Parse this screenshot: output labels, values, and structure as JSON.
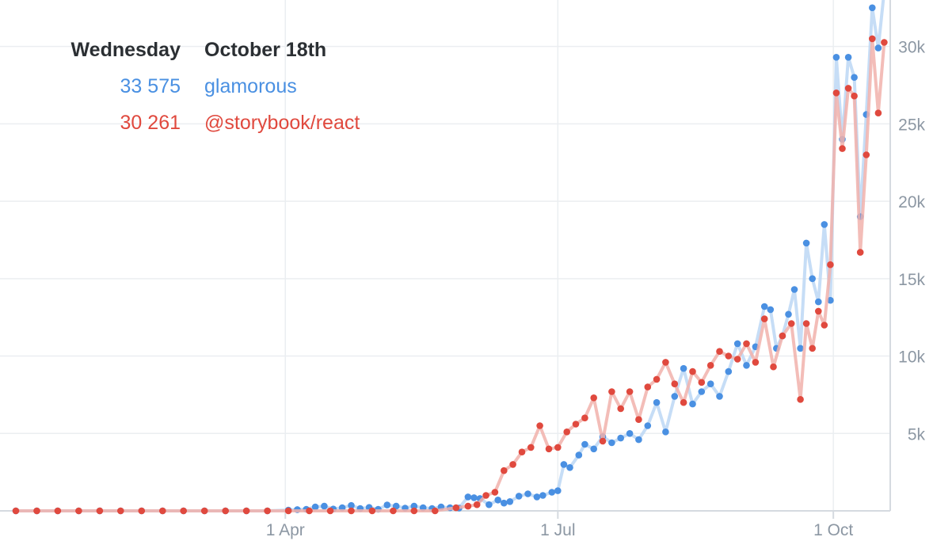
{
  "tooltip": {
    "day": "Wednesday",
    "date": "October 18th",
    "entries": [
      {
        "value": "33 575",
        "label": "glamorous",
        "color": "#4a90e2"
      },
      {
        "value": "30 261",
        "label": "@storybook/react",
        "color": "#e0493e"
      }
    ]
  },
  "chart_data": {
    "type": "line",
    "x_ticks": [
      {
        "label": "1 Apr",
        "date": "2017-04-01"
      },
      {
        "label": "1 Jul",
        "date": "2017-07-01"
      },
      {
        "label": "1 Oct",
        "date": "2017-10-01"
      }
    ],
    "y_ticks": [
      {
        "label": "5k",
        "value": 5000
      },
      {
        "label": "10k",
        "value": 10000
      },
      {
        "label": "15k",
        "value": 15000
      },
      {
        "label": "20k",
        "value": 20000
      },
      {
        "label": "25k",
        "value": 25000
      },
      {
        "label": "30k",
        "value": 30000
      }
    ],
    "xlim": [
      "2017-01-01",
      "2017-10-20"
    ],
    "ylim": [
      0,
      33000
    ],
    "grid": true,
    "series": [
      {
        "name": "glamorous",
        "color": "#4a90e2",
        "line_color": "#bcd7f4",
        "points": [
          [
            "2017-01-01",
            0
          ],
          [
            "2017-01-08",
            0
          ],
          [
            "2017-01-15",
            0
          ],
          [
            "2017-01-22",
            0
          ],
          [
            "2017-01-29",
            0
          ],
          [
            "2017-02-05",
            0
          ],
          [
            "2017-02-12",
            0
          ],
          [
            "2017-02-19",
            0
          ],
          [
            "2017-02-26",
            0
          ],
          [
            "2017-03-05",
            0
          ],
          [
            "2017-03-12",
            0
          ],
          [
            "2017-03-19",
            0
          ],
          [
            "2017-03-26",
            0
          ],
          [
            "2017-04-02",
            50
          ],
          [
            "2017-04-05",
            80
          ],
          [
            "2017-04-08",
            100
          ],
          [
            "2017-04-11",
            250
          ],
          [
            "2017-04-14",
            300
          ],
          [
            "2017-04-17",
            120
          ],
          [
            "2017-04-20",
            200
          ],
          [
            "2017-04-23",
            350
          ],
          [
            "2017-04-26",
            150
          ],
          [
            "2017-04-29",
            220
          ],
          [
            "2017-05-02",
            100
          ],
          [
            "2017-05-05",
            380
          ],
          [
            "2017-05-08",
            300
          ],
          [
            "2017-05-11",
            180
          ],
          [
            "2017-05-14",
            300
          ],
          [
            "2017-05-17",
            200
          ],
          [
            "2017-05-20",
            150
          ],
          [
            "2017-05-23",
            250
          ],
          [
            "2017-05-26",
            200
          ],
          [
            "2017-05-29",
            180
          ],
          [
            "2017-06-01",
            900
          ],
          [
            "2017-06-03",
            850
          ],
          [
            "2017-06-05",
            800
          ],
          [
            "2017-06-08",
            400
          ],
          [
            "2017-06-11",
            700
          ],
          [
            "2017-06-13",
            500
          ],
          [
            "2017-06-15",
            600
          ],
          [
            "2017-06-18",
            950
          ],
          [
            "2017-06-21",
            1100
          ],
          [
            "2017-06-24",
            900
          ],
          [
            "2017-06-26",
            1000
          ],
          [
            "2017-06-29",
            1200
          ],
          [
            "2017-07-01",
            1300
          ],
          [
            "2017-07-03",
            3000
          ],
          [
            "2017-07-05",
            2800
          ],
          [
            "2017-07-08",
            3600
          ],
          [
            "2017-07-10",
            4300
          ],
          [
            "2017-07-13",
            4000
          ],
          [
            "2017-07-16",
            4800
          ],
          [
            "2017-07-19",
            4400
          ],
          [
            "2017-07-22",
            4700
          ],
          [
            "2017-07-25",
            5000
          ],
          [
            "2017-07-28",
            4600
          ],
          [
            "2017-07-31",
            5500
          ],
          [
            "2017-08-03",
            7000
          ],
          [
            "2017-08-06",
            5100
          ],
          [
            "2017-08-09",
            7400
          ],
          [
            "2017-08-12",
            9200
          ],
          [
            "2017-08-15",
            6900
          ],
          [
            "2017-08-18",
            7700
          ],
          [
            "2017-08-21",
            8200
          ],
          [
            "2017-08-24",
            7400
          ],
          [
            "2017-08-27",
            9000
          ],
          [
            "2017-08-30",
            10800
          ],
          [
            "2017-09-02",
            9400
          ],
          [
            "2017-09-05",
            10600
          ],
          [
            "2017-09-08",
            13200
          ],
          [
            "2017-09-10",
            13000
          ],
          [
            "2017-09-12",
            10500
          ],
          [
            "2017-09-14",
            11300
          ],
          [
            "2017-09-16",
            12700
          ],
          [
            "2017-09-18",
            14300
          ],
          [
            "2017-09-20",
            10500
          ],
          [
            "2017-09-22",
            17300
          ],
          [
            "2017-09-24",
            15000
          ],
          [
            "2017-09-26",
            13500
          ],
          [
            "2017-09-28",
            18500
          ],
          [
            "2017-09-30",
            13600
          ],
          [
            "2017-10-02",
            29300
          ],
          [
            "2017-10-04",
            24000
          ],
          [
            "2017-10-06",
            29300
          ],
          [
            "2017-10-08",
            28000
          ],
          [
            "2017-10-10",
            19000
          ],
          [
            "2017-10-12",
            25600
          ],
          [
            "2017-10-14",
            32500
          ],
          [
            "2017-10-16",
            29900
          ],
          [
            "2017-10-18",
            33575
          ]
        ]
      },
      {
        "name": "@storybook/react",
        "color": "#e0493e",
        "line_color": "#f1b1ac",
        "points": [
          [
            "2017-01-01",
            0
          ],
          [
            "2017-01-08",
            0
          ],
          [
            "2017-01-15",
            0
          ],
          [
            "2017-01-22",
            0
          ],
          [
            "2017-01-29",
            0
          ],
          [
            "2017-02-05",
            0
          ],
          [
            "2017-02-12",
            0
          ],
          [
            "2017-02-19",
            0
          ],
          [
            "2017-02-26",
            0
          ],
          [
            "2017-03-05",
            0
          ],
          [
            "2017-03-12",
            0
          ],
          [
            "2017-03-19",
            0
          ],
          [
            "2017-03-26",
            0
          ],
          [
            "2017-04-02",
            0
          ],
          [
            "2017-04-09",
            0
          ],
          [
            "2017-04-16",
            0
          ],
          [
            "2017-04-23",
            0
          ],
          [
            "2017-04-30",
            0
          ],
          [
            "2017-05-07",
            0
          ],
          [
            "2017-05-14",
            0
          ],
          [
            "2017-05-21",
            0
          ],
          [
            "2017-05-28",
            200
          ],
          [
            "2017-06-01",
            300
          ],
          [
            "2017-06-04",
            400
          ],
          [
            "2017-06-07",
            1000
          ],
          [
            "2017-06-10",
            1200
          ],
          [
            "2017-06-13",
            2600
          ],
          [
            "2017-06-16",
            3000
          ],
          [
            "2017-06-19",
            3800
          ],
          [
            "2017-06-22",
            4100
          ],
          [
            "2017-06-25",
            5500
          ],
          [
            "2017-06-28",
            4000
          ],
          [
            "2017-07-01",
            4100
          ],
          [
            "2017-07-04",
            5100
          ],
          [
            "2017-07-07",
            5600
          ],
          [
            "2017-07-10",
            6000
          ],
          [
            "2017-07-13",
            7300
          ],
          [
            "2017-07-16",
            4500
          ],
          [
            "2017-07-19",
            7700
          ],
          [
            "2017-07-22",
            6600
          ],
          [
            "2017-07-25",
            7700
          ],
          [
            "2017-07-28",
            5900
          ],
          [
            "2017-07-31",
            8000
          ],
          [
            "2017-08-03",
            8500
          ],
          [
            "2017-08-06",
            9600
          ],
          [
            "2017-08-09",
            8200
          ],
          [
            "2017-08-12",
            7000
          ],
          [
            "2017-08-15",
            9000
          ],
          [
            "2017-08-18",
            8300
          ],
          [
            "2017-08-21",
            9400
          ],
          [
            "2017-08-24",
            10300
          ],
          [
            "2017-08-27",
            10000
          ],
          [
            "2017-08-30",
            9800
          ],
          [
            "2017-09-02",
            10800
          ],
          [
            "2017-09-05",
            9600
          ],
          [
            "2017-09-08",
            12400
          ],
          [
            "2017-09-11",
            9300
          ],
          [
            "2017-09-14",
            11300
          ],
          [
            "2017-09-17",
            12100
          ],
          [
            "2017-09-20",
            7200
          ],
          [
            "2017-09-22",
            12100
          ],
          [
            "2017-09-24",
            10500
          ],
          [
            "2017-09-26",
            12900
          ],
          [
            "2017-09-28",
            12000
          ],
          [
            "2017-09-30",
            15900
          ],
          [
            "2017-10-02",
            27000
          ],
          [
            "2017-10-04",
            23400
          ],
          [
            "2017-10-06",
            27300
          ],
          [
            "2017-10-08",
            26800
          ],
          [
            "2017-10-10",
            16700
          ],
          [
            "2017-10-12",
            23000
          ],
          [
            "2017-10-14",
            30500
          ],
          [
            "2017-10-16",
            25700
          ],
          [
            "2017-10-18",
            30261
          ]
        ]
      }
    ]
  }
}
